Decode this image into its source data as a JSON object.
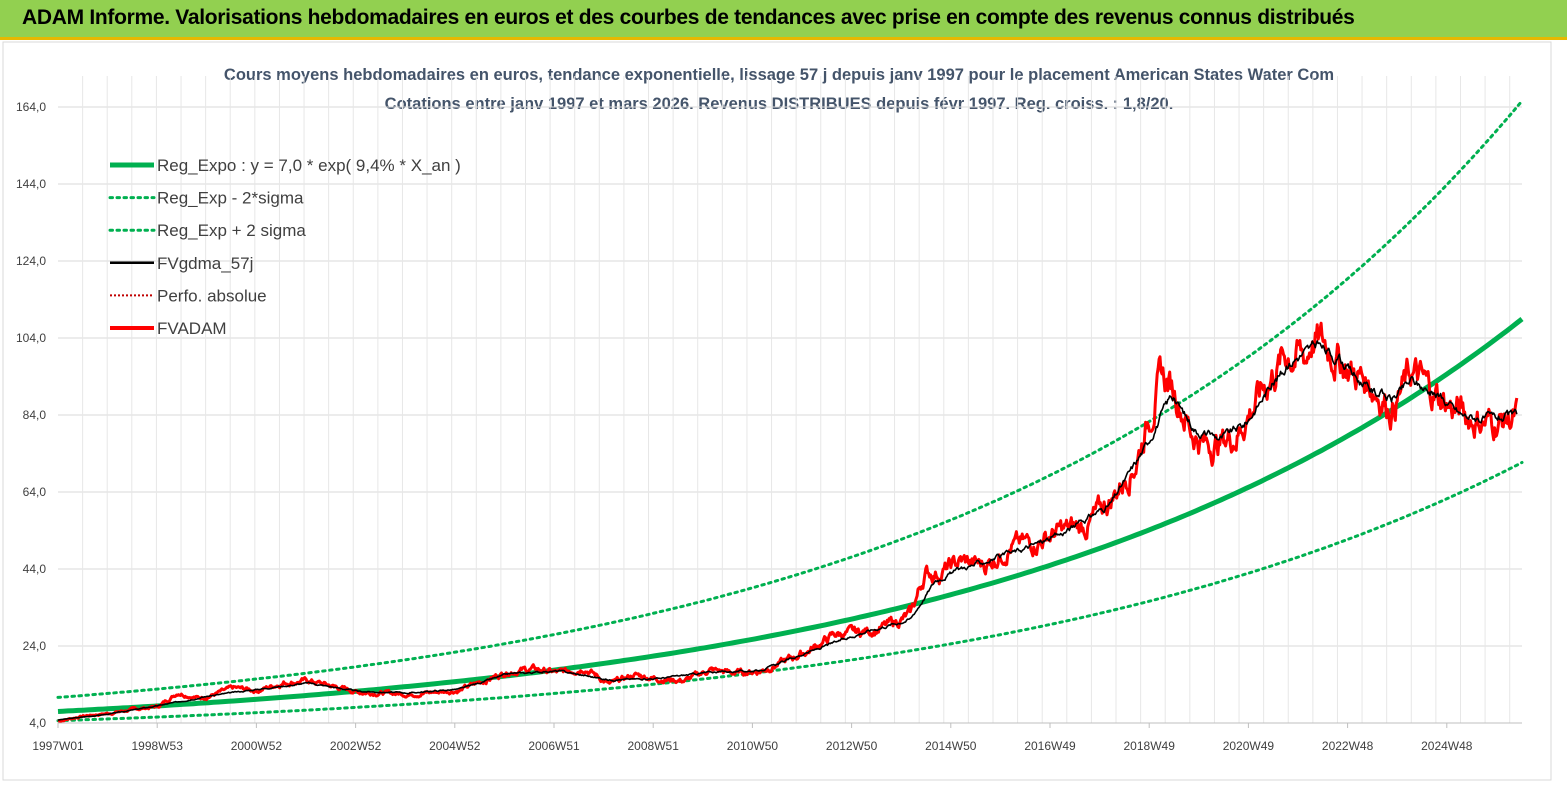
{
  "header": {
    "title": "ADAM Informe. Valorisations hebdomadaires en euros et des courbes de tendances avec prise en compte des revenus connus distribués"
  },
  "colors": {
    "banner": "#92d050",
    "trend": "#00b050",
    "smooth": "#000000",
    "price": "#ff0000",
    "title": "#44546a"
  },
  "chart_data": {
    "type": "line",
    "title_line1": "Cours moyens hebdomadaires en euros, tendance exponentielle, lissage 57 j depuis janv 1997  pour le placement American States Water Com",
    "title_line2": "Cotations entre janv 1997 et mars 2026. Revenus DISTRIBUES depuis févr 1997. Reg. croiss. : 1,8/20.",
    "xlabel": "",
    "ylabel": "",
    "ylim": [
      4,
      172
    ],
    "xlim": [
      1997.0,
      2026.2
    ],
    "grid": true,
    "legend_position": "top-left",
    "y_ticks": [
      "4,0",
      "24,0",
      "44,0",
      "64,0",
      "84,0",
      "104,0",
      "124,0",
      "144,0",
      "164,0"
    ],
    "x_ticks": [
      "1997W01",
      "1998W53",
      "2000W52",
      "2002W52",
      "2004W52",
      "2006W51",
      "2008W51",
      "2010W50",
      "2012W50",
      "2014W50",
      "2016W49",
      "2018W49",
      "2020W49",
      "2022W48",
      "2024W48"
    ],
    "trend_model": {
      "a": 7.0,
      "rate": 0.094,
      "sigma_factor": 1.52
    },
    "series": [
      {
        "name": "Reg_Expo : y = 7,0 * exp( 9,4% *  X_an )",
        "style": "trend"
      },
      {
        "name": "Reg_Exp - 2*sigma",
        "style": "band"
      },
      {
        "name": "Reg_Exp + 2 sigma",
        "style": "band"
      },
      {
        "name": "FVgdma_57j",
        "style": "smooth"
      },
      {
        "name": "Perfo. absolue",
        "style": "dotted-red"
      },
      {
        "name": "FVADAM",
        "style": "price",
        "x": [
          1997.0,
          1997.5,
          1998.0,
          1998.5,
          1999.0,
          1999.4,
          1999.8,
          2000.0,
          2000.5,
          2001.0,
          2001.5,
          2002.0,
          2002.5,
          2003.0,
          2003.5,
          2004.0,
          2004.5,
          2005.0,
          2005.5,
          2006.0,
          2006.5,
          2007.0,
          2007.5,
          2008.0,
          2008.5,
          2009.0,
          2009.5,
          2010.0,
          2010.5,
          2011.0,
          2011.5,
          2012.0,
          2012.5,
          2013.0,
          2013.5,
          2014.0,
          2014.3,
          2014.6,
          2015.0,
          2015.5,
          2016.0,
          2016.5,
          2017.0,
          2017.5,
          2018.0,
          2018.5,
          2019.0,
          2019.3,
          2019.6,
          2019.9,
          2020.2,
          2020.5,
          2021.0,
          2021.5,
          2021.9,
          2022.0,
          2022.4,
          2022.8,
          2023.2,
          2023.6,
          2024.0,
          2024.4,
          2024.8,
          2025.2,
          2025.6,
          2026.1
        ],
        "values": [
          4.5,
          5.8,
          6.5,
          7.5,
          8.3,
          12.0,
          10.5,
          11.0,
          13.0,
          12.5,
          14.5,
          15.0,
          13.5,
          12.0,
          11.8,
          11.5,
          12.0,
          12.5,
          15.0,
          17.5,
          18.0,
          17.0,
          18.5,
          14.0,
          16.5,
          15.5,
          15.0,
          17.8,
          17.0,
          17.5,
          20.0,
          23.0,
          27.0,
          27.5,
          29.0,
          32.0,
          43.0,
          43.0,
          46.0,
          45.0,
          50.0,
          51.0,
          54.0,
          55.0,
          62.0,
          72.0,
          94.0,
          90.0,
          80.0,
          76.0,
          77.0,
          79.0,
          90.0,
          100.0,
          99.0,
          104.0,
          101.0,
          95.0,
          92.0,
          86.0,
          95.0,
          90.0,
          86.0,
          83.0,
          82.0,
          83.5
        ]
      },
      {
        "name": "FVgdma_57j-smooth",
        "style": "smooth-data",
        "x": [
          1997.0,
          1998.0,
          1999.0,
          2000.0,
          2001.0,
          2002.0,
          2003.0,
          2004.0,
          2005.0,
          2006.0,
          2007.0,
          2008.0,
          2009.0,
          2010.0,
          2011.0,
          2012.0,
          2013.0,
          2014.0,
          2014.5,
          2015.0,
          2016.0,
          2017.0,
          2018.0,
          2018.7,
          2019.2,
          2019.7,
          2020.2,
          2020.7,
          2021.2,
          2021.7,
          2022.1,
          2022.6,
          2023.1,
          2023.6,
          2024.0,
          2024.5,
          2025.0,
          2025.5,
          2026.1
        ],
        "values": [
          4.8,
          6.3,
          8.5,
          11.0,
          12.8,
          14.4,
          12.2,
          11.8,
          12.8,
          16.8,
          17.5,
          15.2,
          15.6,
          17.2,
          17.6,
          22.5,
          27.3,
          31.0,
          41.0,
          44.0,
          48.0,
          53.0,
          61.0,
          76.0,
          89.0,
          80.0,
          78.0,
          82.0,
          92.0,
          99.0,
          102.0,
          98.0,
          91.0,
          88.0,
          93.0,
          89.0,
          84.0,
          83.0,
          83.8
        ]
      }
    ]
  }
}
